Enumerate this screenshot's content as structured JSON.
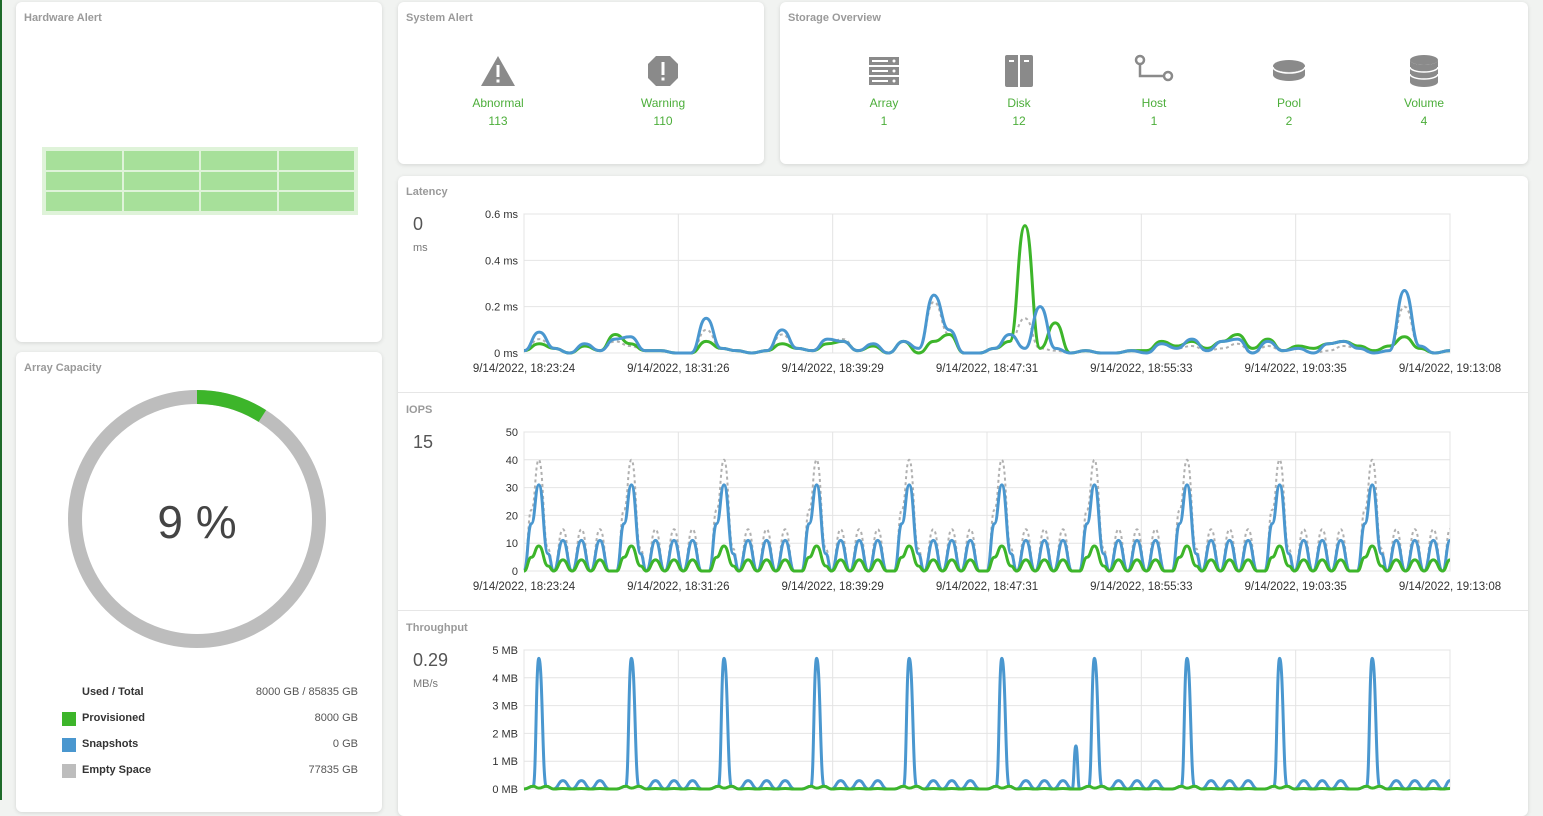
{
  "hardware_alert": {
    "title": "Hardware Alert"
  },
  "system_alert": {
    "title": "System Alert",
    "items": [
      {
        "label": "Abnormal",
        "value": "113",
        "icon": "warning-triangle-icon"
      },
      {
        "label": "Warning",
        "value": "110",
        "icon": "exclamation-octagon-icon"
      }
    ]
  },
  "storage_overview": {
    "title": "Storage Overview",
    "items": [
      {
        "label": "Array",
        "value": "1",
        "icon": "server-rack-icon"
      },
      {
        "label": "Disk",
        "value": "12",
        "icon": "disk-icon"
      },
      {
        "label": "Host",
        "value": "1",
        "icon": "host-connection-icon"
      },
      {
        "label": "Pool",
        "value": "2",
        "icon": "pool-icon"
      },
      {
        "label": "Volume",
        "value": "4",
        "icon": "volume-stack-icon"
      }
    ]
  },
  "array_capacity": {
    "title": "Array Capacity",
    "percent_label": "9 %",
    "used_fraction": 0.09,
    "used_total_label": "Used / Total",
    "used_total_value": "8000 GB / 85835 GB",
    "legend": [
      {
        "label": "Provisioned",
        "value": "8000 GB",
        "color": "#3db52a"
      },
      {
        "label": "Snapshots",
        "value": "0 GB",
        "color": "#4a97cf"
      },
      {
        "label": "Empty Space",
        "value": "77835 GB",
        "color": "#bdbdbd"
      }
    ]
  },
  "colors": {
    "green": "#3db52a",
    "blue": "#4a97cf",
    "gray": "#bdbdbd",
    "dotted": "#b0b0b0"
  },
  "chart_data": [
    {
      "type": "line",
      "title": "Latency",
      "current_value": "0",
      "current_unit": "ms",
      "x_tick_labels": [
        "9/14/2022, 18:23:24",
        "9/14/2022, 18:31:26",
        "9/14/2022, 18:39:29",
        "9/14/2022, 18:47:31",
        "9/14/2022, 18:55:33",
        "9/14/2022, 19:03:35",
        "9/14/2022, 19:13:08"
      ],
      "y_tick_labels": [
        "0.6 ms",
        "0.4 ms",
        "0.2 ms",
        "0 ms"
      ],
      "ylim": [
        0,
        0.6
      ],
      "series": [
        {
          "color": "#b0b0b0",
          "style": "dotted",
          "values": [
            0.01,
            0.06,
            0.02,
            0.0,
            0.03,
            0.01,
            0.05,
            0.03,
            0.01,
            0.01,
            0.0,
            0.0,
            0.1,
            0.02,
            0.01,
            0.0,
            0.01,
            0.08,
            0.02,
            0.01,
            0.04,
            0.06,
            0.01,
            0.03,
            0.0,
            0.05,
            0.02,
            0.22,
            0.08,
            0.0,
            0.0,
            0.02,
            0.05,
            0.15,
            0.02,
            0.01,
            0.0,
            0.01,
            0.0,
            0.0,
            0.01,
            0.0,
            0.04,
            0.02,
            0.03,
            0.01,
            0.02,
            0.04,
            0.0,
            0.03,
            0.01,
            0.02,
            0.0,
            0.01,
            0.03,
            0.02,
            0.0,
            0.01,
            0.2,
            0.03,
            0.0,
            0.01
          ]
        },
        {
          "color": "#3db52a",
          "style": "solid",
          "values": [
            0.01,
            0.04,
            0.02,
            0.0,
            0.03,
            0.01,
            0.08,
            0.04,
            0.01,
            0.01,
            0.0,
            0.0,
            0.05,
            0.02,
            0.01,
            0.0,
            0.01,
            0.04,
            0.02,
            0.01,
            0.04,
            0.05,
            0.01,
            0.03,
            0.0,
            0.05,
            0.0,
            0.05,
            0.08,
            0.0,
            0.0,
            0.02,
            0.05,
            0.55,
            0.02,
            0.13,
            0.0,
            0.01,
            0.0,
            0.0,
            0.01,
            0.01,
            0.05,
            0.03,
            0.05,
            0.02,
            0.05,
            0.08,
            0.02,
            0.06,
            0.01,
            0.03,
            0.02,
            0.04,
            0.05,
            0.03,
            0.01,
            0.03,
            0.07,
            0.02,
            0.0,
            0.01
          ]
        },
        {
          "color": "#4a97cf",
          "style": "solid",
          "values": [
            0.01,
            0.09,
            0.02,
            0.0,
            0.04,
            0.01,
            0.06,
            0.07,
            0.01,
            0.01,
            0.0,
            0.0,
            0.15,
            0.02,
            0.01,
            0.0,
            0.01,
            0.1,
            0.02,
            0.01,
            0.06,
            0.05,
            0.01,
            0.04,
            0.0,
            0.05,
            0.02,
            0.25,
            0.1,
            0.0,
            0.0,
            0.02,
            0.08,
            0.02,
            0.2,
            0.02,
            0.0,
            0.01,
            0.0,
            0.0,
            0.01,
            0.0,
            0.04,
            0.02,
            0.06,
            0.01,
            0.05,
            0.06,
            0.0,
            0.05,
            0.01,
            0.02,
            0.0,
            0.04,
            0.05,
            0.02,
            0.0,
            0.01,
            0.27,
            0.03,
            0.0,
            0.01
          ]
        }
      ]
    },
    {
      "type": "line",
      "title": "IOPS",
      "current_value": "15",
      "current_unit": "",
      "x_tick_labels": [
        "9/14/2022, 18:23:24",
        "9/14/2022, 18:31:26",
        "9/14/2022, 18:39:29",
        "9/14/2022, 18:47:31",
        "9/14/2022, 18:55:33",
        "9/14/2022, 19:03:35",
        "9/14/2022, 19:13:08"
      ],
      "y_tick_labels": [
        "50",
        "40",
        "30",
        "20",
        "10",
        "0"
      ],
      "ylim": [
        0,
        50
      ],
      "peak_count": 10,
      "series": [
        {
          "color": "#b0b0b0",
          "style": "dotted",
          "peak": 40,
          "mid": 15
        },
        {
          "color": "#4a97cf",
          "style": "solid",
          "peak": 31,
          "mid": 11
        },
        {
          "color": "#3db52a",
          "style": "solid",
          "peak": 9,
          "mid": 4
        }
      ]
    },
    {
      "type": "line",
      "title": "Throughput",
      "current_value": "0.29",
      "current_unit": "MB/s",
      "y_tick_labels": [
        "5 MB",
        "4 MB",
        "3 MB",
        "2 MB",
        "1 MB",
        "0 MB"
      ],
      "ylim": [
        0,
        5
      ],
      "peak_count": 10,
      "series": [
        {
          "color": "#4a97cf",
          "style": "solid",
          "peak": 4.7,
          "small": 0.3,
          "anomaly_index": 5,
          "anomaly_value": 1.55
        },
        {
          "color": "#3db52a",
          "style": "solid",
          "peak": 0.03,
          "small": 0.02
        }
      ]
    }
  ]
}
